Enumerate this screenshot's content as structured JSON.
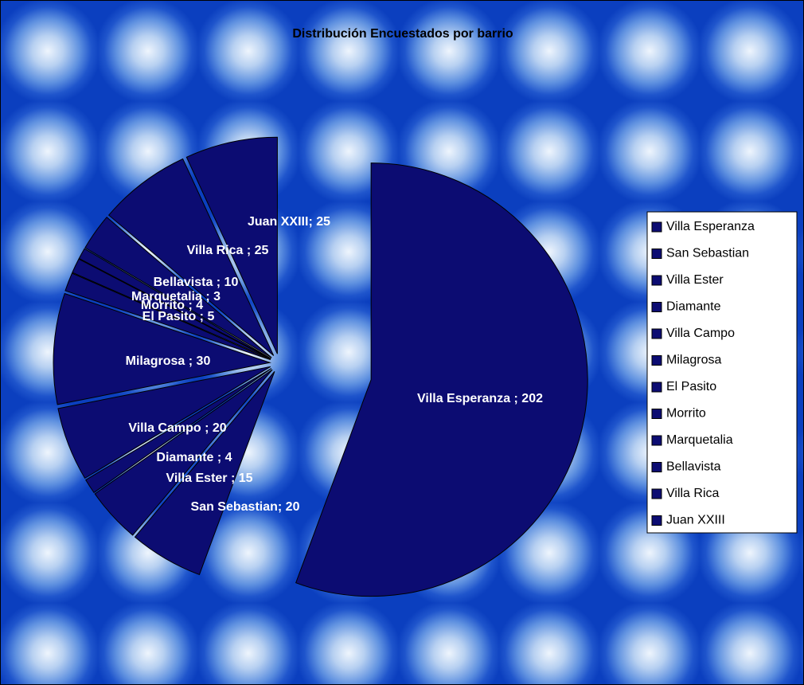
{
  "chart_data": {
    "type": "pie",
    "title": "Distribución Encuestados por barrio",
    "categories": [
      "Villa Esperanza",
      "San Sebastian",
      "Villa Ester",
      "Diamante",
      "Villa Campo",
      "Milagrosa",
      "El Pasito",
      "Morrito",
      "Marquetalia",
      "Bellavista",
      "Villa Rica",
      "Juan XXIII"
    ],
    "values": [
      202,
      20,
      15,
      4,
      20,
      30,
      5,
      4,
      3,
      10,
      25,
      25
    ],
    "value_labels": [
      "Villa Esperanza ; 202",
      "San Sebastian; 20",
      "Villa Ester ; 15",
      "Diamante ; 4",
      "Villa Campo ; 20",
      "Milagrosa ; 30",
      "El Pasito ; 5",
      "Morrito ; 4",
      "Marquetalia ; 3",
      "Bellavista ; 10",
      "Villa Rica ; 25",
      "Juan XXIII; 25"
    ],
    "color": "#0c0c72",
    "legend": "right"
  }
}
